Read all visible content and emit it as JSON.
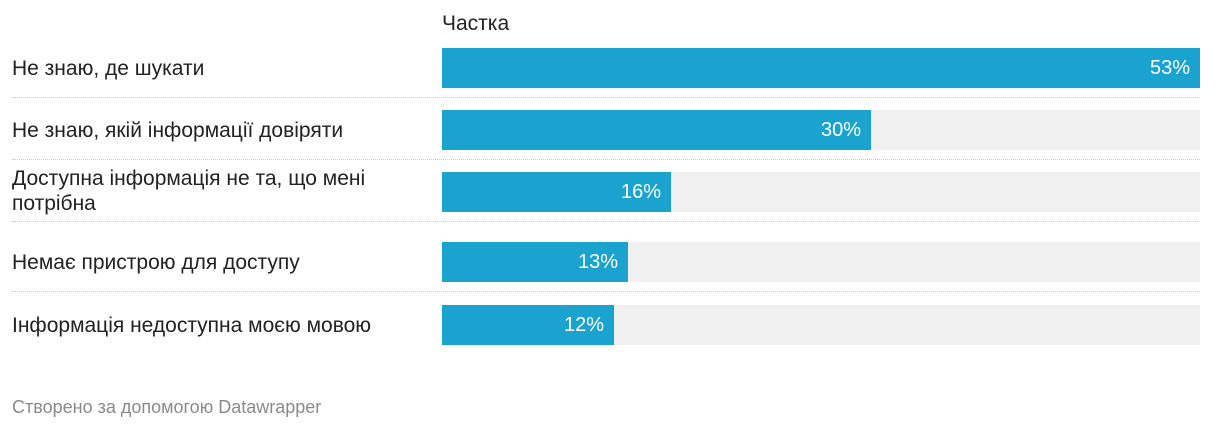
{
  "chart_data": {
    "type": "bar",
    "orientation": "horizontal",
    "column_header": "Частка",
    "categories": [
      "Не знаю, де шукати",
      "Не знаю, якій інформації довіряти",
      "Доступна інформація не та, що мені потрібна",
      "Немає пристрою для доступу",
      "Інформація недоступна моєю мовою"
    ],
    "values": [
      53,
      30,
      16,
      13,
      12
    ],
    "value_labels": [
      "53%",
      "30%",
      "16%",
      "13%",
      "12%"
    ],
    "xlim": [
      0,
      53
    ],
    "grid": false,
    "bar_color": "#1aa3cf",
    "track_color": "#f0f0f0"
  },
  "footer": {
    "credit": "Створено за допомогою Datawrapper"
  }
}
